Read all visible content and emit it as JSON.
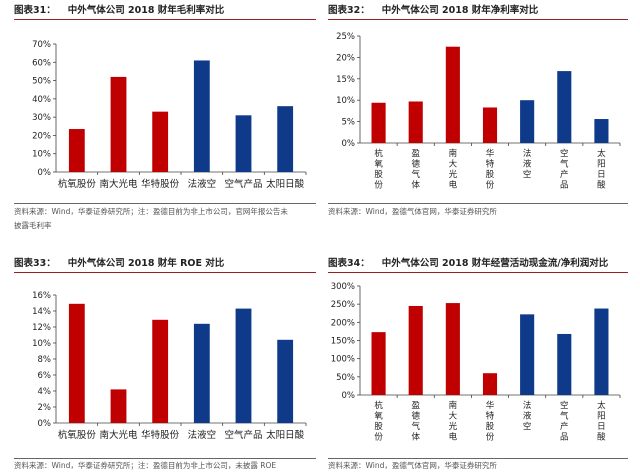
{
  "charts": [
    {
      "fig_label": "图表31：",
      "title": "中外气体公司 2018 财年毛利率对比",
      "source": "资料来源：Wind，华泰证券研究所；注：盈德目前为非上市公司，官网年报公告未披露毛利率",
      "chart_data": {
        "type": "bar",
        "categories": [
          "杭氧股份",
          "南大光电",
          "华特股份",
          "法液空",
          "空气产品",
          "太阳日酸"
        ],
        "values": [
          23.5,
          52,
          33,
          61,
          31,
          36
        ],
        "colors": [
          "#c00000",
          "#c00000",
          "#c00000",
          "#0f3a8a",
          "#0f3a8a",
          "#0f3a8a"
        ],
        "ylim": [
          0,
          70
        ],
        "ticks": [
          "0%",
          "10%",
          "20%",
          "30%",
          "40%",
          "50%",
          "60%",
          "70%"
        ],
        "label_orientation": "horizontal",
        "xlabel": "",
        "ylabel": ""
      }
    },
    {
      "fig_label": "图表32：",
      "title": "中外气体公司 2018 财年净利率对比",
      "source": "资料来源：Wind，盈德气体官网，华泰证券研究所",
      "chart_data": {
        "type": "bar",
        "categories": [
          "杭氧股份",
          "盈德气体",
          "南大光电",
          "华特股份",
          "法液空",
          "空气产品",
          "太阳日酸"
        ],
        "values": [
          9.4,
          9.7,
          22.5,
          8.3,
          10,
          16.8,
          5.6
        ],
        "colors": [
          "#c00000",
          "#c00000",
          "#c00000",
          "#c00000",
          "#0f3a8a",
          "#0f3a8a",
          "#0f3a8a"
        ],
        "ylim": [
          0,
          25
        ],
        "ticks": [
          "0%",
          "5%",
          "10%",
          "15%",
          "20%",
          "25%"
        ],
        "label_orientation": "vertical",
        "xlabel": "",
        "ylabel": ""
      }
    },
    {
      "fig_label": "图表33：",
      "title": "中外气体公司 2018 财年 ROE 对比",
      "source": "资料来源：Wind，华泰证券研究所；注：盈德目前为非上市公司，未披露 ROE",
      "chart_data": {
        "type": "bar",
        "categories": [
          "杭氧股份",
          "南大光电",
          "华特股份",
          "法液空",
          "空气产品",
          "太阳日酸"
        ],
        "values": [
          14.9,
          4.2,
          12.9,
          12.4,
          14.3,
          10.4
        ],
        "colors": [
          "#c00000",
          "#c00000",
          "#c00000",
          "#0f3a8a",
          "#0f3a8a",
          "#0f3a8a"
        ],
        "ylim": [
          0,
          16
        ],
        "ticks": [
          "0%",
          "2%",
          "4%",
          "6%",
          "8%",
          "10%",
          "12%",
          "14%",
          "16%"
        ],
        "label_orientation": "horizontal",
        "xlabel": "",
        "ylabel": ""
      }
    },
    {
      "fig_label": "图表34：",
      "title": "中外气体公司 2018 财年经营活动现金流/净利润对比",
      "source": "资料来源：Wind，盈德气体官网，华泰证券研究所",
      "chart_data": {
        "type": "bar",
        "categories": [
          "杭氧股份",
          "盈德气体",
          "南大光电",
          "华特股份",
          "法液空",
          "空气产品",
          "太阳日酸"
        ],
        "values": [
          173,
          245,
          253,
          60,
          222,
          168,
          238
        ],
        "colors": [
          "#c00000",
          "#c00000",
          "#c00000",
          "#c00000",
          "#0f3a8a",
          "#0f3a8a",
          "#0f3a8a"
        ],
        "ylim": [
          0,
          300
        ],
        "ticks": [
          "0%",
          "50%",
          "100%",
          "150%",
          "200%",
          "250%",
          "300%"
        ],
        "label_orientation": "vertical",
        "xlabel": "",
        "ylabel": ""
      }
    }
  ]
}
